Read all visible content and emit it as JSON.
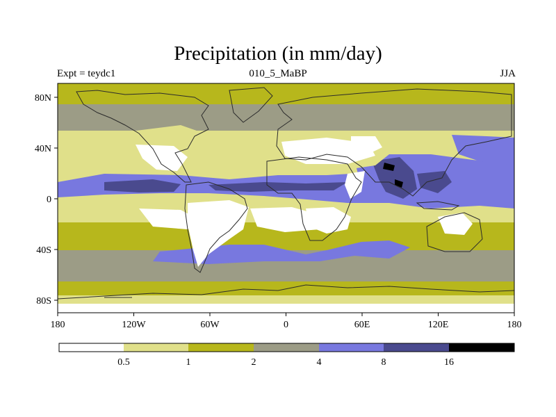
{
  "title": "Precipitation (in mm/day)",
  "subtitle_left": "Expt = teydc1",
  "subtitle_center": "010_5_MaBP",
  "subtitle_right": "JJA",
  "colors": {
    "c0": "#ffffff",
    "c1": "#e0e08a",
    "c2": "#b7b71c",
    "c3": "#9c9c86",
    "c4": "#7878df",
    "c5": "#4a4a8e",
    "c6": "#000000",
    "coast": "#2b2b2b"
  },
  "lat_ticks": [
    "80N",
    "40N",
    "0",
    "40S",
    "80S"
  ],
  "lon_ticks": [
    "180",
    "120W",
    "60W",
    "0",
    "60E",
    "120E",
    "180"
  ],
  "colorbar": {
    "levels": [
      "0.5",
      "1",
      "2",
      "4",
      "8",
      "16"
    ],
    "colors": [
      "c0",
      "c1",
      "c2",
      "c3",
      "c4",
      "c5",
      "c6"
    ]
  }
}
